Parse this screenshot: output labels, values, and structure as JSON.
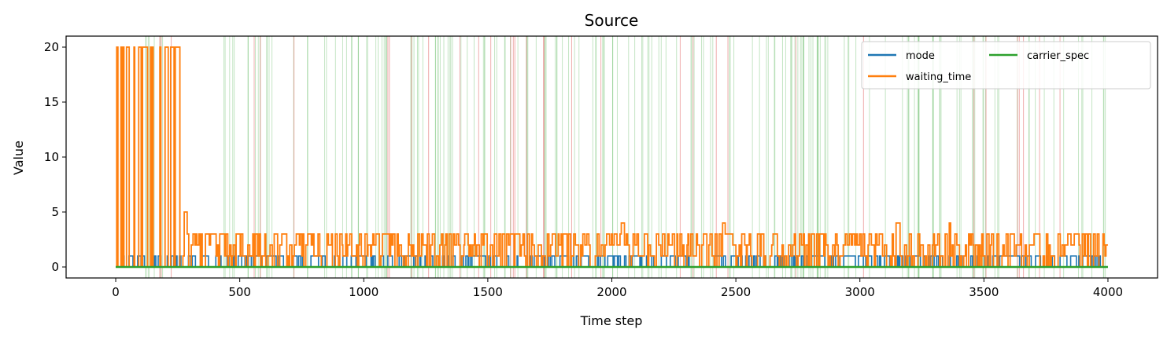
{
  "chart_data": {
    "type": "line",
    "title": "Source",
    "xlabel": "Time step",
    "ylabel": "Value",
    "xlim": [
      -200,
      4200
    ],
    "ylim": [
      -1,
      21
    ],
    "xticks": [
      0,
      500,
      1000,
      1500,
      2000,
      2500,
      3000,
      3500,
      4000
    ],
    "yticks": [
      0,
      5,
      10,
      15,
      20
    ],
    "grid": false,
    "legend_position": "top-right",
    "series": [
      {
        "name": "mode",
        "color": "#1f77b4",
        "description": "binary signal toggling between 0 and 1 over 0-4000",
        "x_range": [
          0,
          4000
        ],
        "values": [
          0,
          1
        ],
        "solid_high_spans": [
          [
            340,
            370
          ],
          [
            605,
            640
          ],
          [
            1165,
            1200
          ],
          [
            1455,
            1490
          ],
          [
            1880,
            1905
          ],
          [
            2505,
            2525
          ],
          [
            2935,
            2975
          ],
          [
            3020,
            3045
          ],
          [
            3555,
            3640
          ],
          [
            3895,
            3915
          ]
        ]
      },
      {
        "name": "waiting_time",
        "color": "#ff7f0e",
        "description": "0-20 spikes until ~270, then fluctuates mostly 0-3",
        "x_range": [
          0,
          4000
        ],
        "phase1_range": [
          0,
          270
        ],
        "phase1_max": 20,
        "phase2_max": 3,
        "peaks": [
          [
            280,
            5
          ],
          [
            2040,
            4
          ],
          [
            2450,
            4
          ],
          [
            3150,
            4
          ],
          [
            3360,
            4
          ]
        ]
      },
      {
        "name": "carrier_spec",
        "color": "#2ca02c",
        "description": "near constant 0",
        "x_range": [
          0,
          4000
        ],
        "values": [
          0
        ]
      }
    ],
    "background_markers": {
      "green": {
        "color": "#2ca02c",
        "count": 190,
        "range": [
          100,
          4000
        ]
      },
      "red": {
        "color": "#d62728",
        "count": 34,
        "range": [
          60,
          3900
        ]
      }
    }
  }
}
